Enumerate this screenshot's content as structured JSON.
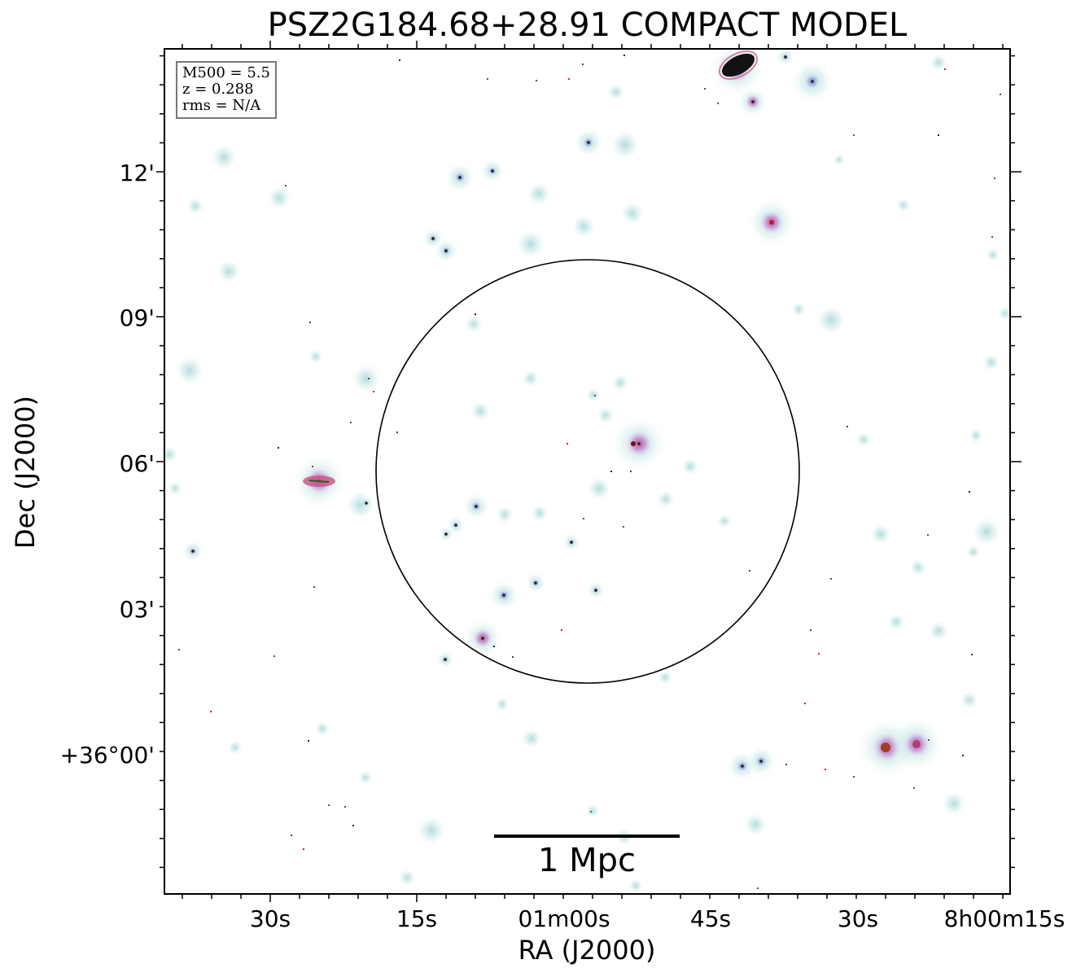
{
  "title": "PSZ2G184.68+28.91 COMPACT MODEL",
  "info": {
    "m500": "M500 = 5.5",
    "z": "z = 0.288",
    "rms": "rms = N/A"
  },
  "scale_bar": {
    "label": "1 Mpc",
    "length_mpc": 1
  },
  "axes": {
    "xlabel": "RA (J2000)",
    "ylabel": "Dec (J2000)",
    "x_ticks": [
      "30s",
      "15s",
      "01m00s",
      "45s",
      "30s",
      "8h00m15s"
    ],
    "y_ticks": [
      "12'",
      "09'",
      "06'",
      "03'",
      "+36°00'"
    ]
  },
  "colors": {
    "source_halo": "#bfe3e3",
    "source_mid": "#8f8fd8",
    "source_core": "#c9508f",
    "circle": "#000000"
  }
}
